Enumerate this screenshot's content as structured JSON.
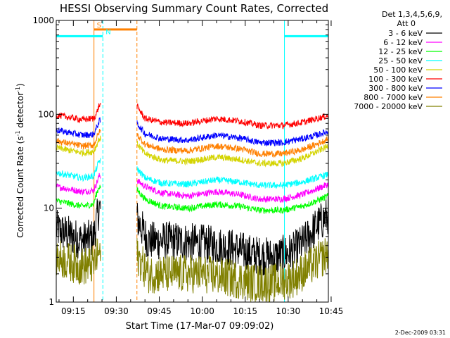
{
  "chart_data": {
    "type": "line",
    "title": "HESSI Observing Summary Count Rates, Corrected",
    "xlabel": "Start Time (17-Mar-07 09:09:02)",
    "ylabel_main": "Corrected Count Rate (s",
    "ylabel_sup1": "-1",
    "ylabel_mid": " detector",
    "ylabel_sup2": "-1",
    "ylabel_end": ")",
    "y_scale": "log",
    "ylim": [
      1,
      1000
    ],
    "xlim_minutes": [
      9.03,
      104.03
    ],
    "x_ticks": [
      {
        "label": "09:15",
        "minutes": 15
      },
      {
        "label": "09:30",
        "minutes": 30
      },
      {
        "label": "09:45",
        "minutes": 45
      },
      {
        "label": "10:00",
        "minutes": 60
      },
      {
        "label": "10:15",
        "minutes": 75
      },
      {
        "label": "10:30",
        "minutes": 90
      },
      {
        "label": "10:45",
        "minutes": 105
      }
    ],
    "y_ticks": [
      {
        "label": "1",
        "value": 1
      },
      {
        "label": "10",
        "value": 10
      },
      {
        "label": "100",
        "value": 100
      },
      {
        "label": "1000",
        "value": 1000
      }
    ],
    "legend": {
      "placement": "top-right",
      "header_line1": "Det 1,3,4,5,6,9,",
      "header_line2": "Att 0"
    },
    "series": [
      {
        "name": "3 - 6 keV",
        "color": "#000000",
        "points": [
          [
            9.03,
            6
          ],
          [
            18,
            4.5
          ],
          [
            22,
            4.8
          ],
          [
            23,
            7
          ],
          [
            24,
            10
          ],
          [
            37,
            8
          ],
          [
            41,
            4.5
          ],
          [
            50,
            4.5
          ],
          [
            60,
            4.2
          ],
          [
            70,
            3.8
          ],
          [
            78,
            3.2
          ],
          [
            85,
            3.0
          ],
          [
            92,
            3.5
          ],
          [
            96,
            4.5
          ],
          [
            100,
            6.5
          ],
          [
            104,
            8.5
          ]
        ]
      },
      {
        "name": "6 - 12 keV",
        "color": "#ff00ff",
        "points": [
          [
            9.03,
            17
          ],
          [
            18,
            15
          ],
          [
            22,
            15.5
          ],
          [
            23,
            18
          ],
          [
            24,
            22
          ],
          [
            37,
            20
          ],
          [
            40,
            17
          ],
          [
            46,
            14.5
          ],
          [
            55,
            13.5
          ],
          [
            65,
            15
          ],
          [
            73,
            14
          ],
          [
            80,
            12.5
          ],
          [
            88,
            12.5
          ],
          [
            95,
            14
          ],
          [
            100,
            16
          ],
          [
            104,
            18
          ]
        ]
      },
      {
        "name": "12 - 25 keV",
        "color": "#00ff00",
        "points": [
          [
            9.03,
            12
          ],
          [
            18,
            10.5
          ],
          [
            22,
            11
          ],
          [
            23,
            14
          ],
          [
            24,
            17
          ],
          [
            37,
            16
          ],
          [
            40,
            12.5
          ],
          [
            46,
            10.5
          ],
          [
            55,
            10
          ],
          [
            65,
            11
          ],
          [
            73,
            10.5
          ],
          [
            80,
            9.5
          ],
          [
            88,
            9.5
          ],
          [
            95,
            10.5
          ],
          [
            100,
            12
          ],
          [
            104,
            13.5
          ]
        ]
      },
      {
        "name": "25 - 50 keV",
        "color": "#00ffff",
        "points": [
          [
            9.03,
            24
          ],
          [
            18,
            21
          ],
          [
            22,
            22
          ],
          [
            23,
            26
          ],
          [
            24,
            32
          ],
          [
            37,
            27
          ],
          [
            40,
            21
          ],
          [
            46,
            18.5
          ],
          [
            55,
            18
          ],
          [
            65,
            20
          ],
          [
            73,
            19
          ],
          [
            80,
            17.5
          ],
          [
            88,
            17.5
          ],
          [
            95,
            19
          ],
          [
            100,
            21
          ],
          [
            104,
            23
          ]
        ]
      },
      {
        "name": "50 - 100 keV",
        "color": "#d4d400",
        "points": [
          [
            9.03,
            44
          ],
          [
            18,
            39
          ],
          [
            22,
            40
          ],
          [
            23,
            46
          ],
          [
            24,
            55
          ],
          [
            37,
            50
          ],
          [
            40,
            38
          ],
          [
            46,
            32.5
          ],
          [
            55,
            31.5
          ],
          [
            65,
            35
          ],
          [
            73,
            33
          ],
          [
            80,
            30
          ],
          [
            88,
            30
          ],
          [
            95,
            34
          ],
          [
            100,
            40
          ],
          [
            104,
            46
          ]
        ]
      },
      {
        "name": "100 - 300 keV",
        "color": "#ff0000",
        "points": [
          [
            9.03,
            98
          ],
          [
            18,
            88
          ],
          [
            22,
            90
          ],
          [
            23,
            100
          ],
          [
            24,
            125
          ],
          [
            37,
            125
          ],
          [
            40,
            90
          ],
          [
            46,
            82
          ],
          [
            55,
            80
          ],
          [
            65,
            90
          ],
          [
            73,
            85
          ],
          [
            80,
            76
          ],
          [
            88,
            76
          ],
          [
            95,
            82
          ],
          [
            100,
            90
          ],
          [
            104,
            97
          ]
        ]
      },
      {
        "name": "300 - 800 keV",
        "color": "#0000ff",
        "points": [
          [
            9.03,
            68
          ],
          [
            18,
            60
          ],
          [
            22,
            61
          ],
          [
            23,
            70
          ],
          [
            24,
            85
          ],
          [
            37,
            82
          ],
          [
            40,
            62
          ],
          [
            46,
            55
          ],
          [
            55,
            53
          ],
          [
            65,
            60
          ],
          [
            73,
            56
          ],
          [
            80,
            50
          ],
          [
            88,
            50
          ],
          [
            95,
            55
          ],
          [
            100,
            60
          ],
          [
            104,
            66
          ]
        ]
      },
      {
        "name": "800 - 7000 keV",
        "color": "#ff8000",
        "points": [
          [
            9.03,
            52
          ],
          [
            18,
            46
          ],
          [
            22,
            47
          ],
          [
            23,
            54
          ],
          [
            24,
            65
          ],
          [
            37,
            62
          ],
          [
            40,
            48
          ],
          [
            46,
            42
          ],
          [
            55,
            41
          ],
          [
            65,
            46
          ],
          [
            73,
            43
          ],
          [
            80,
            38
          ],
          [
            88,
            38
          ],
          [
            95,
            42
          ],
          [
            100,
            48
          ],
          [
            104,
            55
          ]
        ]
      },
      {
        "name": "7000 - 20000 keV",
        "color": "#808000",
        "points": [
          [
            9.03,
            3
          ],
          [
            18,
            2.4
          ],
          [
            22,
            2.5
          ],
          [
            23,
            3
          ],
          [
            24,
            3.3
          ],
          [
            37,
            3.2
          ],
          [
            41,
            2
          ],
          [
            50,
            2
          ],
          [
            60,
            2
          ],
          [
            70,
            1.8
          ],
          [
            78,
            1.6
          ],
          [
            85,
            1.6
          ],
          [
            92,
            1.8
          ],
          [
            96,
            2.2
          ],
          [
            100,
            2.7
          ],
          [
            104,
            3.3
          ]
        ]
      }
    ],
    "gaps_minutes": [
      [
        24.6,
        37.2
      ]
    ],
    "flags": [
      {
        "label": "S",
        "color": "#ff8000",
        "start": 22.2,
        "end": 37.2,
        "value": 800
      },
      {
        "label": "N",
        "color": "#00ffff",
        "start": 25.3,
        "end": 25.3,
        "value": 680
      },
      {
        "label": "",
        "color": "#00ffff",
        "start": 9.03,
        "end": 25.3,
        "value": 680
      },
      {
        "label": "",
        "color": "#00ffff",
        "start": 88.7,
        "end": 104.03,
        "value": 680
      }
    ],
    "vlines": [
      {
        "color": "#00ffff",
        "minutes": 9.03,
        "style": "solid"
      },
      {
        "color": "#00ffff",
        "minutes": 25.3,
        "style": "dashed"
      },
      {
        "color": "#ff8000",
        "minutes": 22.2,
        "style": "solid"
      },
      {
        "color": "#ff8000",
        "minutes": 37.2,
        "style": "dashed"
      },
      {
        "color": "#00ffff",
        "minutes": 88.7,
        "style": "solid"
      },
      {
        "color": "#00ffff",
        "minutes": 104.03,
        "style": "dashed"
      }
    ]
  },
  "footer_date": "2-Dec-2009 03:31"
}
